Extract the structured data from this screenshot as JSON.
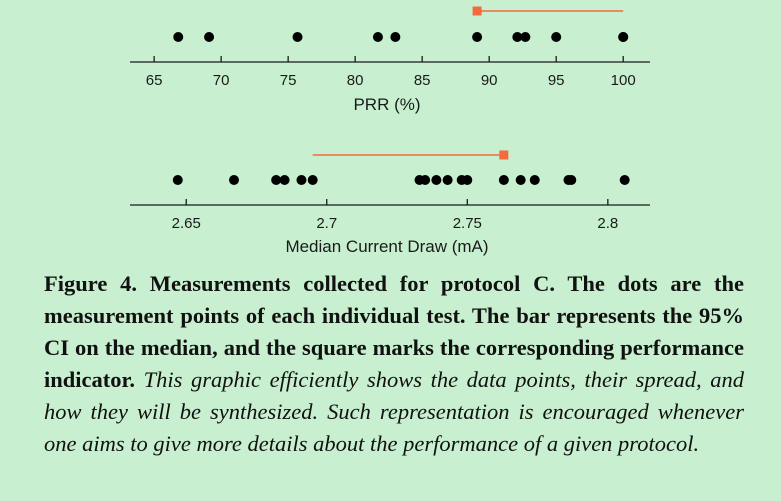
{
  "chart_data": [
    {
      "type": "scatter",
      "xlabel": "PRR (%)",
      "xlim": [
        63.2,
        102.0
      ],
      "xticks": [
        65,
        70,
        75,
        80,
        85,
        90,
        95,
        100
      ],
      "xtick_labels": [
        "65",
        "70",
        "75",
        "80",
        "85",
        "90",
        "95",
        "100"
      ],
      "points": [
        66.8,
        69.1,
        75.7,
        81.7,
        83.0,
        89.1,
        92.1,
        92.7,
        95.0,
        100.0,
        100.0
      ],
      "ci": [
        89.1,
        100.0
      ],
      "indicator": 89.1,
      "dot_color": "#000000",
      "marker_color": "#f26a3d"
    },
    {
      "type": "scatter",
      "xlabel": "Median Current Draw (mA)",
      "xlim": [
        2.63,
        2.815
      ],
      "xticks": [
        2.65,
        2.7,
        2.75,
        2.8
      ],
      "xtick_labels": [
        "2.65",
        "2.7",
        "2.75",
        "2.8"
      ],
      "points": [
        2.647,
        2.667,
        2.682,
        2.685,
        2.691,
        2.695,
        2.733,
        2.735,
        2.739,
        2.743,
        2.748,
        2.75,
        2.763,
        2.769,
        2.774,
        2.786,
        2.787,
        2.806
      ],
      "ci": [
        2.695,
        2.763
      ],
      "indicator": 2.763,
      "dot_color": "#000000",
      "marker_color": "#f26a3d"
    }
  ],
  "caption": {
    "bold": "Figure 4. Measurements collected for protocol C. The dots are the measurement points of each individual test. The bar represents the 95% CI on the median, and the square marks the corresponding performance indicator.",
    "italic": "This graphic efficiently shows the data points, their spread, and how they will be synthesized. Such representation is encouraged whenever one aims to give more details about the performance of a given protocol."
  }
}
